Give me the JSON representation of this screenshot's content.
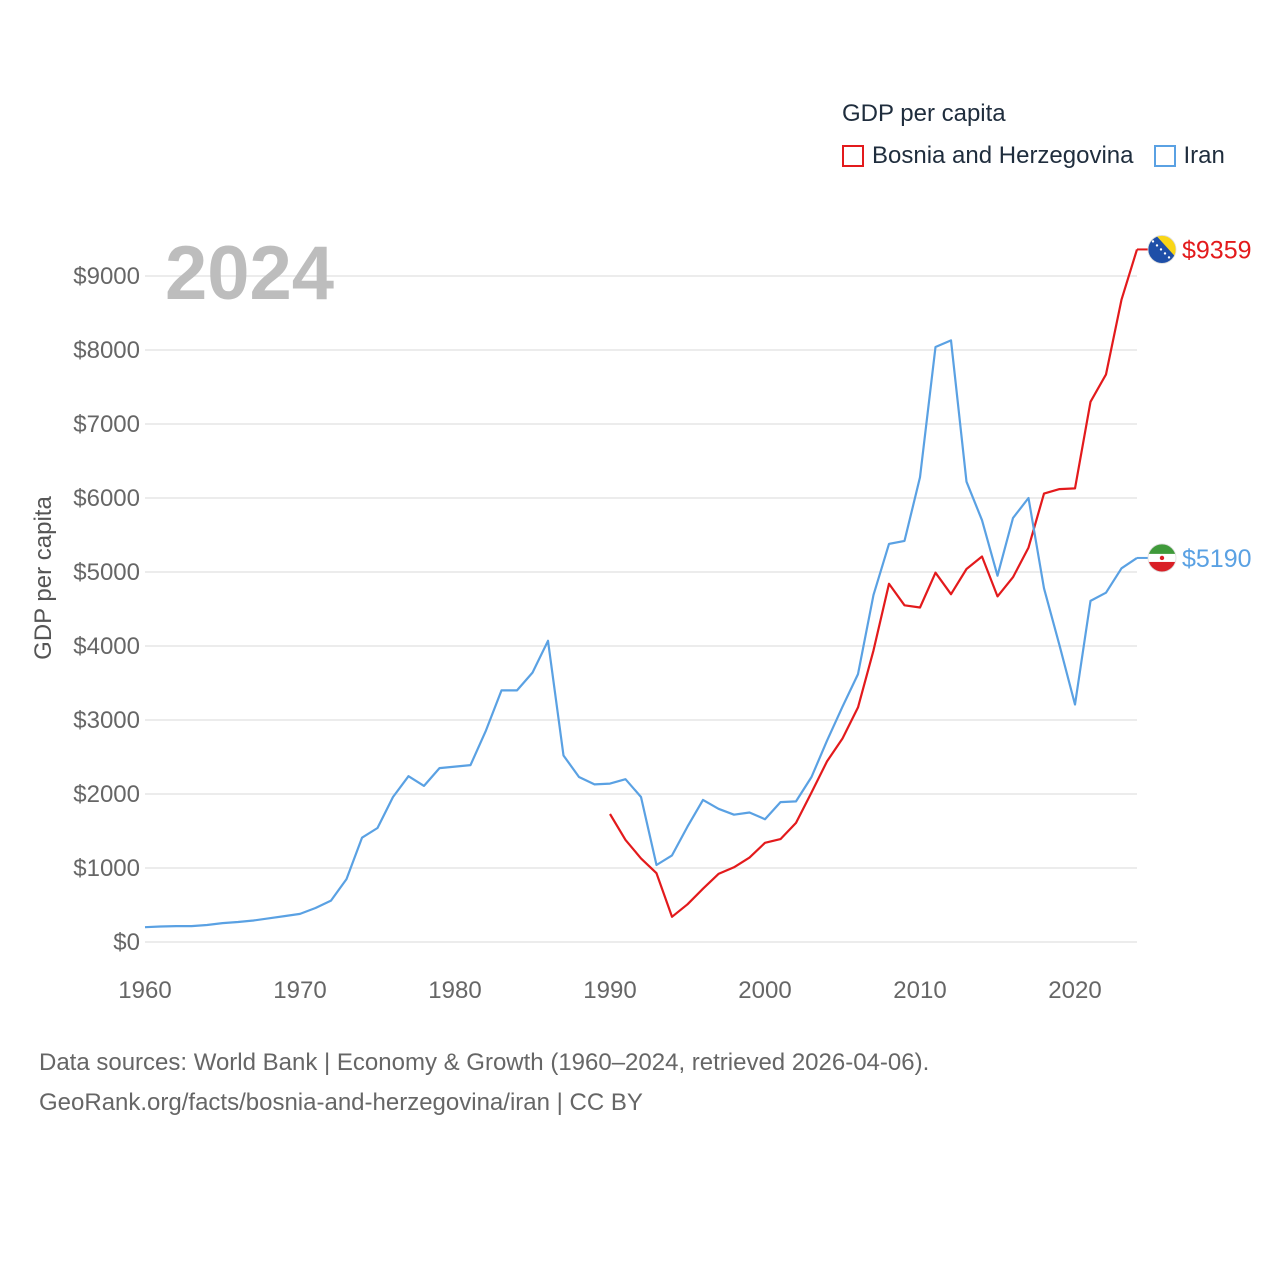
{
  "legend": {
    "title": "GDP per capita",
    "items": [
      {
        "name": "Bosnia and Herzegovina",
        "color": "#e31a1c"
      },
      {
        "name": "Iran",
        "color": "#5aa1e3"
      }
    ]
  },
  "year_label": "2024",
  "footer": {
    "line1": "Data sources: World Bank | Economy & Growth (1960–2024, retrieved 2026-04-06).",
    "line2": "GeoRank.org/facts/bosnia-and-herzegovina/iran | CC BY"
  },
  "chart_data": {
    "type": "line",
    "title": "GDP per capita",
    "ylabel": "GDP per capita",
    "xlabel": "",
    "xlim": [
      1960,
      2024
    ],
    "ylim": [
      0,
      9000
    ],
    "x_ticks": [
      1960,
      1970,
      1980,
      1990,
      2000,
      2010,
      2020
    ],
    "y_ticks": [
      0,
      1000,
      2000,
      3000,
      4000,
      5000,
      6000,
      7000,
      8000,
      9000
    ],
    "y_tick_labels": [
      "$0",
      "$1000",
      "$2000",
      "$3000",
      "$4000",
      "$5000",
      "$6000",
      "$7000",
      "$8000",
      "$9000"
    ],
    "grid": true,
    "series": [
      {
        "name": "Bosnia and Herzegovina",
        "color": "#e31a1c",
        "end_label": "$9359",
        "flag": "bosnia-flag-icon",
        "x": [
          1990,
          1991,
          1992,
          1993,
          1994,
          1995,
          1996,
          1997,
          1998,
          1999,
          2000,
          2001,
          2002,
          2003,
          2004,
          2005,
          2006,
          2007,
          2008,
          2009,
          2010,
          2011,
          2012,
          2013,
          2014,
          2015,
          2016,
          2017,
          2018,
          2019,
          2020,
          2021,
          2022,
          2023,
          2024
        ],
        "values": [
          1730,
          1380,
          1130,
          930,
          340,
          510,
          720,
          920,
          1010,
          1140,
          1340,
          1390,
          1610,
          2020,
          2440,
          2750,
          3170,
          3940,
          4840,
          4550,
          4520,
          4990,
          4700,
          5040,
          5210,
          4670,
          4930,
          5330,
          6060,
          6120,
          6130,
          7300,
          7670,
          8680,
          9359
        ]
      },
      {
        "name": "Iran",
        "color": "#5aa1e3",
        "end_label": "$5190",
        "flag": "iran-flag-icon",
        "x": [
          1960,
          1961,
          1962,
          1963,
          1964,
          1965,
          1966,
          1967,
          1968,
          1969,
          1970,
          1971,
          1972,
          1973,
          1974,
          1975,
          1976,
          1977,
          1978,
          1979,
          1980,
          1981,
          1982,
          1983,
          1984,
          1985,
          1986,
          1987,
          1988,
          1989,
          1990,
          1991,
          1992,
          1993,
          1994,
          1995,
          1996,
          1997,
          1998,
          1999,
          2000,
          2001,
          2002,
          2003,
          2004,
          2005,
          2006,
          2007,
          2008,
          2009,
          2010,
          2011,
          2012,
          2013,
          2014,
          2015,
          2016,
          2017,
          2018,
          2019,
          2020,
          2021,
          2022,
          2023,
          2024
        ],
        "values": [
          200,
          210,
          215,
          215,
          230,
          255,
          270,
          290,
          320,
          350,
          380,
          460,
          560,
          850,
          1410,
          1540,
          1960,
          2240,
          2110,
          2350,
          2370,
          2390,
          2860,
          3400,
          3400,
          3640,
          4070,
          2520,
          2230,
          2130,
          2140,
          2200,
          1960,
          1040,
          1170,
          1560,
          1920,
          1800,
          1720,
          1750,
          1660,
          1890,
          1900,
          2230,
          2720,
          3180,
          3620,
          4690,
          5380,
          5420,
          6280,
          8040,
          8130,
          6220,
          5700,
          4950,
          5730,
          6000,
          4780,
          4010,
          3210,
          4610,
          4720,
          5050,
          5190
        ]
      }
    ]
  }
}
